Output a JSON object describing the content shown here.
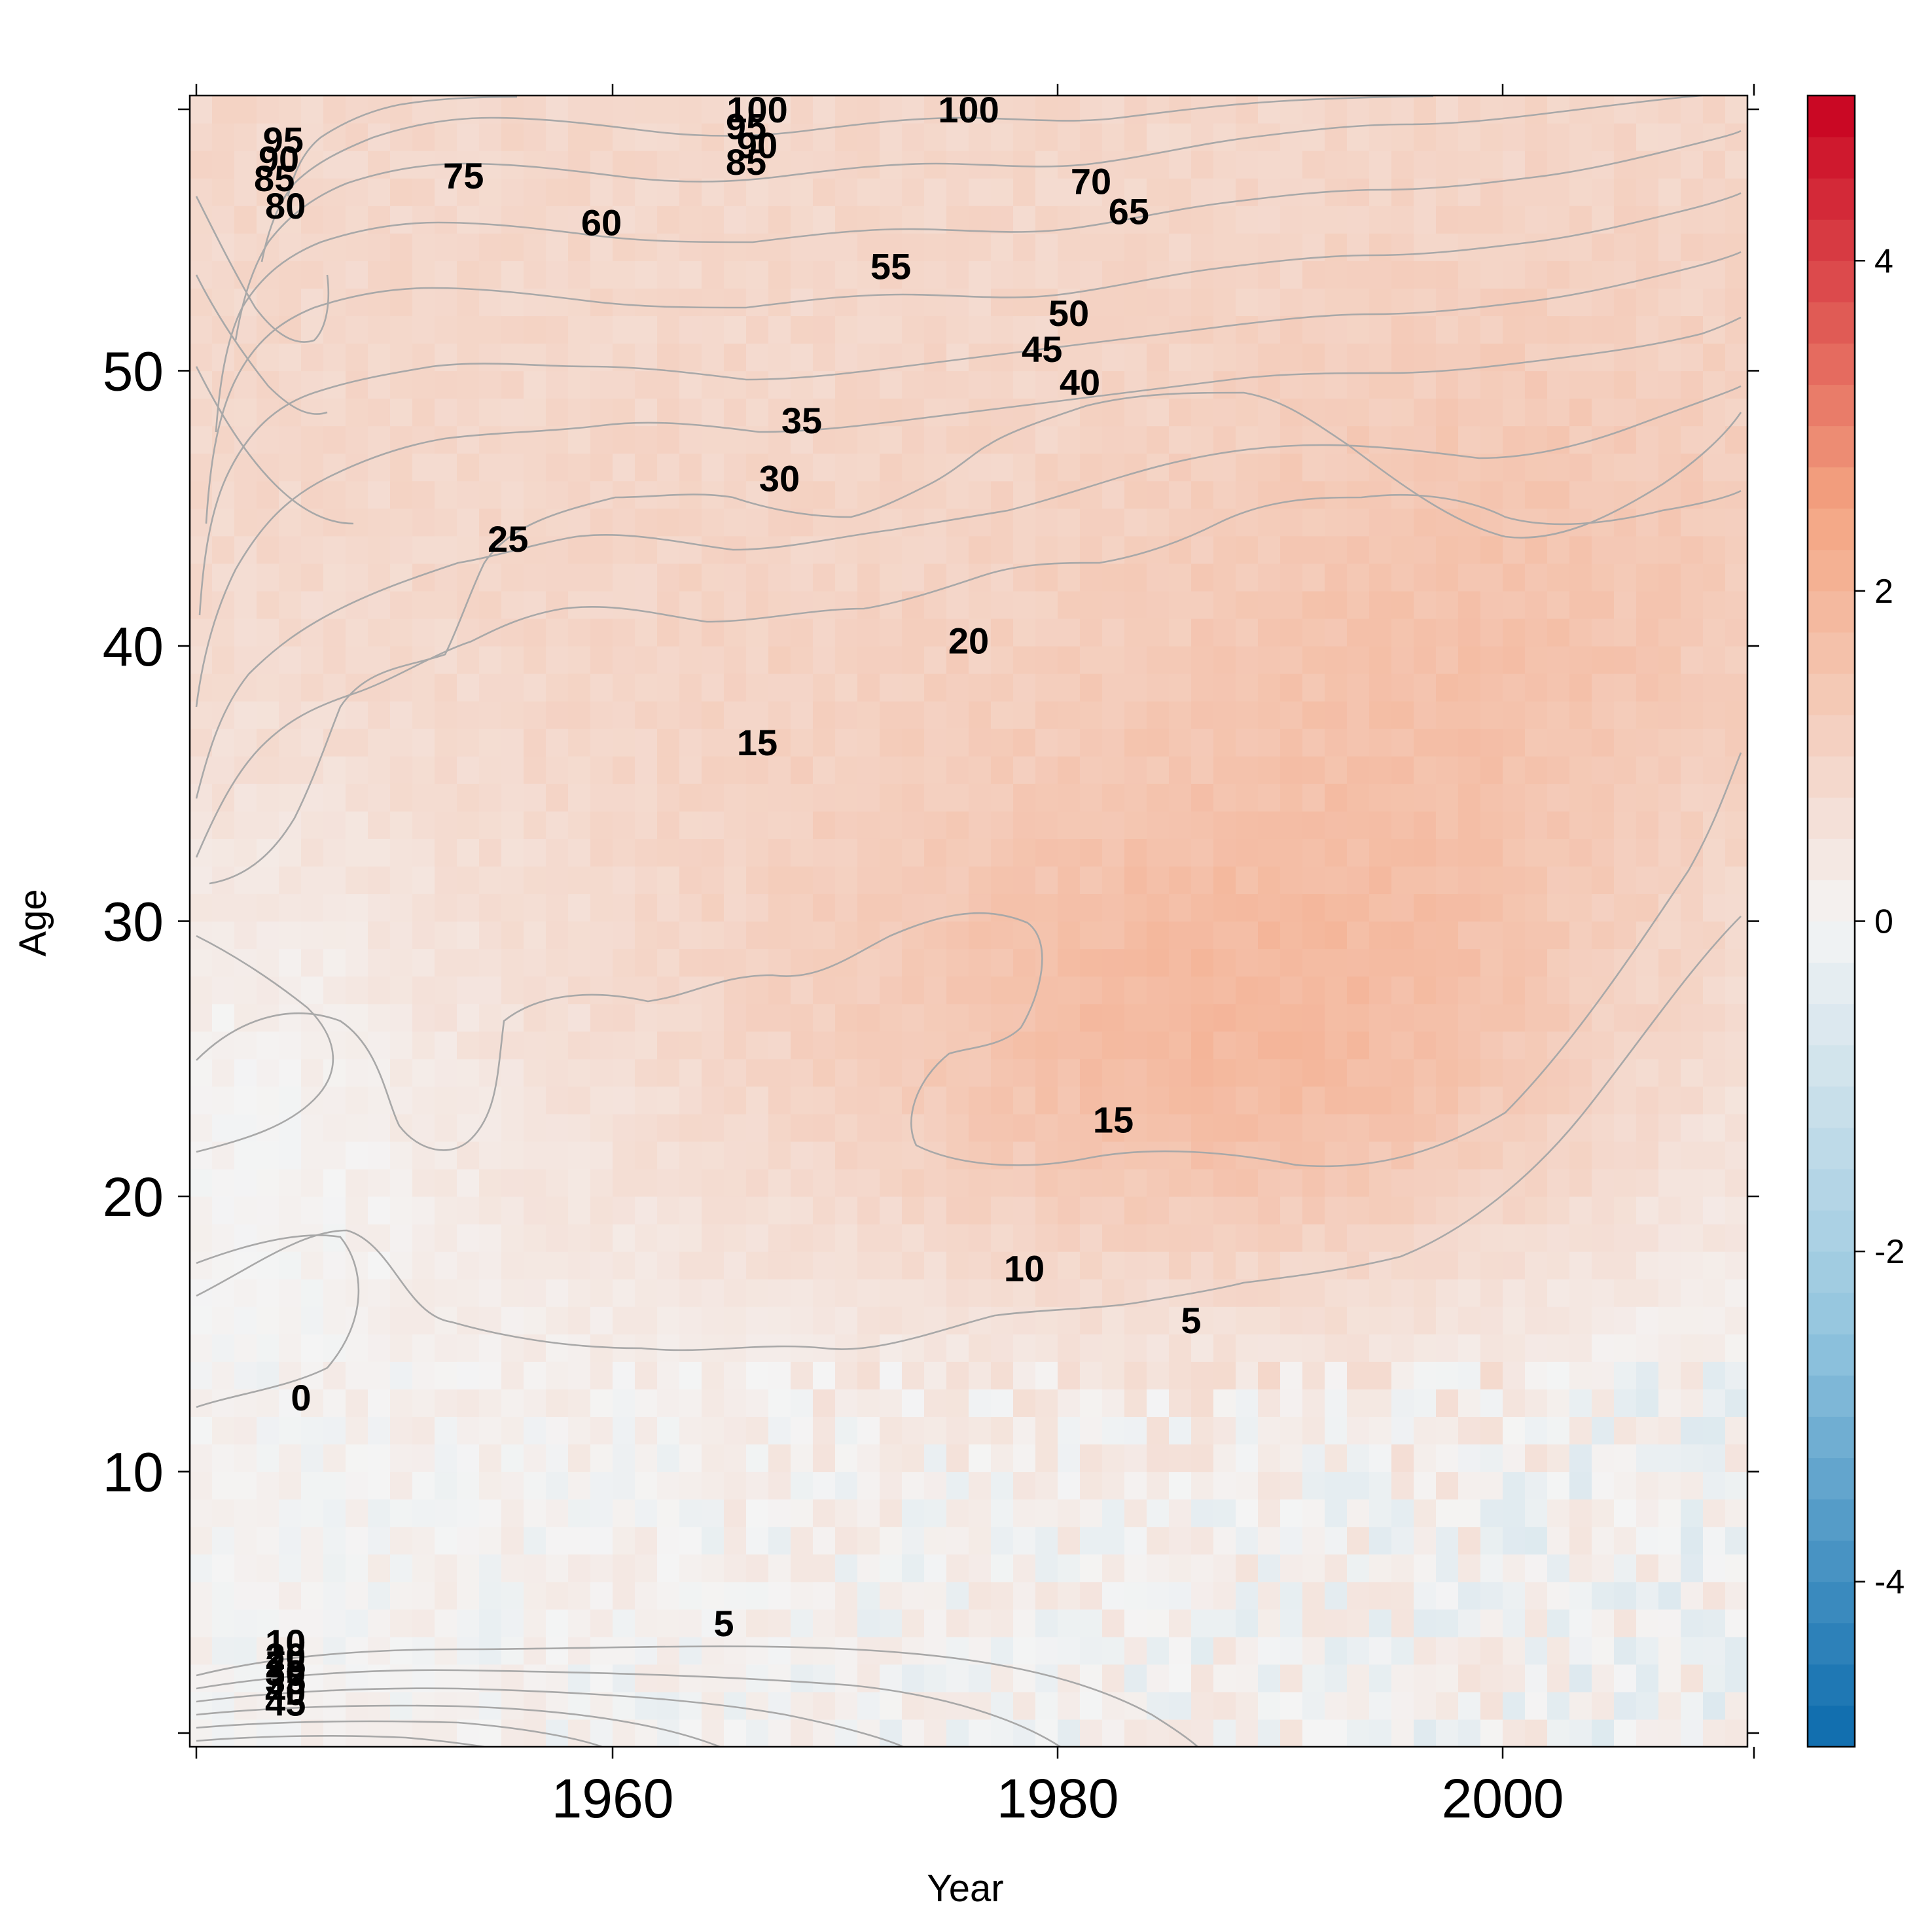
{
  "chart_data": {
    "type": "heatmap",
    "title": "",
    "xlabel": "Year",
    "ylabel": "Age",
    "xlim": [
      1941,
      2011
    ],
    "ylim": [
      0,
      60
    ],
    "x_ticks": [
      1960,
      1980,
      2000
    ],
    "x_tick_labels": [
      "1960",
      "1980",
      "2000"
    ],
    "y_ticks": [
      10,
      20,
      30,
      40,
      50
    ],
    "y_tick_labels": [
      "10",
      "20",
      "30",
      "40",
      "50"
    ],
    "colorbar": {
      "range": [
        -5,
        5
      ],
      "ticks": [
        -4,
        -2,
        0,
        2,
        4
      ],
      "tick_labels": [
        "-4",
        "-2",
        "0",
        "2",
        "4"
      ],
      "low_color": "#0b6aac",
      "mid_color": "#f4f4f4",
      "high_color": "#c8001f"
    },
    "approx_value_field": [
      {
        "region": "young ages 0-13, all years",
        "value": 0.2
      },
      {
        "region": "ages 13-30, before 1955",
        "value": 0.3
      },
      {
        "region": "ages 15-40, 1955-1975",
        "value": 0.8
      },
      {
        "region": "ages 15-35, 1975-2000",
        "value": 1.3
      },
      {
        "region": "ages 20-30, around 1995",
        "value": 1.7
      },
      {
        "region": "ages 35-60, all years",
        "value": 0.9
      },
      {
        "region": "ages 0-13, after 2000",
        "value": -0.2
      }
    ],
    "contour_labels": [
      {
        "text": "100",
        "year": 1976.0,
        "age": 59.5
      },
      {
        "text": "100",
        "year": 1966.5,
        "age": 59.5
      },
      {
        "text": "95",
        "year": 1966.0,
        "age": 58.9
      },
      {
        "text": "90",
        "year": 1966.5,
        "age": 58.2
      },
      {
        "text": "85",
        "year": 1966.0,
        "age": 57.6
      },
      {
        "text": "95",
        "year": 1945.2,
        "age": 58.4
      },
      {
        "text": "90",
        "year": 1945.0,
        "age": 57.7
      },
      {
        "text": "85",
        "year": 1944.8,
        "age": 57.0
      },
      {
        "text": "80",
        "year": 1945.3,
        "age": 56.0
      },
      {
        "text": "75",
        "year": 1953.3,
        "age": 57.1
      },
      {
        "text": "70",
        "year": 1981.5,
        "age": 56.9
      },
      {
        "text": "65",
        "year": 1983.2,
        "age": 55.8
      },
      {
        "text": "60",
        "year": 1959.5,
        "age": 55.4
      },
      {
        "text": "55",
        "year": 1972.5,
        "age": 53.8
      },
      {
        "text": "50",
        "year": 1980.5,
        "age": 52.1
      },
      {
        "text": "45",
        "year": 1979.3,
        "age": 50.8
      },
      {
        "text": "40",
        "year": 1981.0,
        "age": 49.6
      },
      {
        "text": "35",
        "year": 1968.5,
        "age": 48.2
      },
      {
        "text": "30",
        "year": 1967.5,
        "age": 46.1
      },
      {
        "text": "25",
        "year": 1955.3,
        "age": 43.9
      },
      {
        "text": "20",
        "year": 1976.0,
        "age": 40.2
      },
      {
        "text": "15",
        "year": 1966.5,
        "age": 36.5
      },
      {
        "text": "15",
        "year": 1982.5,
        "age": 22.8
      },
      {
        "text": "10",
        "year": 1978.5,
        "age": 17.4
      },
      {
        "text": "5",
        "year": 1986.0,
        "age": 15.5
      },
      {
        "text": "0",
        "year": 1946.0,
        "age": 12.7
      },
      {
        "text": "5",
        "year": 1965.0,
        "age": 4.5
      },
      {
        "text": "10",
        "year": 1945.3,
        "age": 3.8
      },
      {
        "text": "20",
        "year": 1945.3,
        "age": 3.3
      },
      {
        "text": "25",
        "year": 1945.3,
        "age": 3.0
      },
      {
        "text": "30",
        "year": 1945.3,
        "age": 2.7
      },
      {
        "text": "35",
        "year": 1945.3,
        "age": 2.4
      },
      {
        "text": "40",
        "year": 1945.3,
        "age": 2.0
      },
      {
        "text": "45",
        "year": 1945.3,
        "age": 1.6
      }
    ]
  }
}
